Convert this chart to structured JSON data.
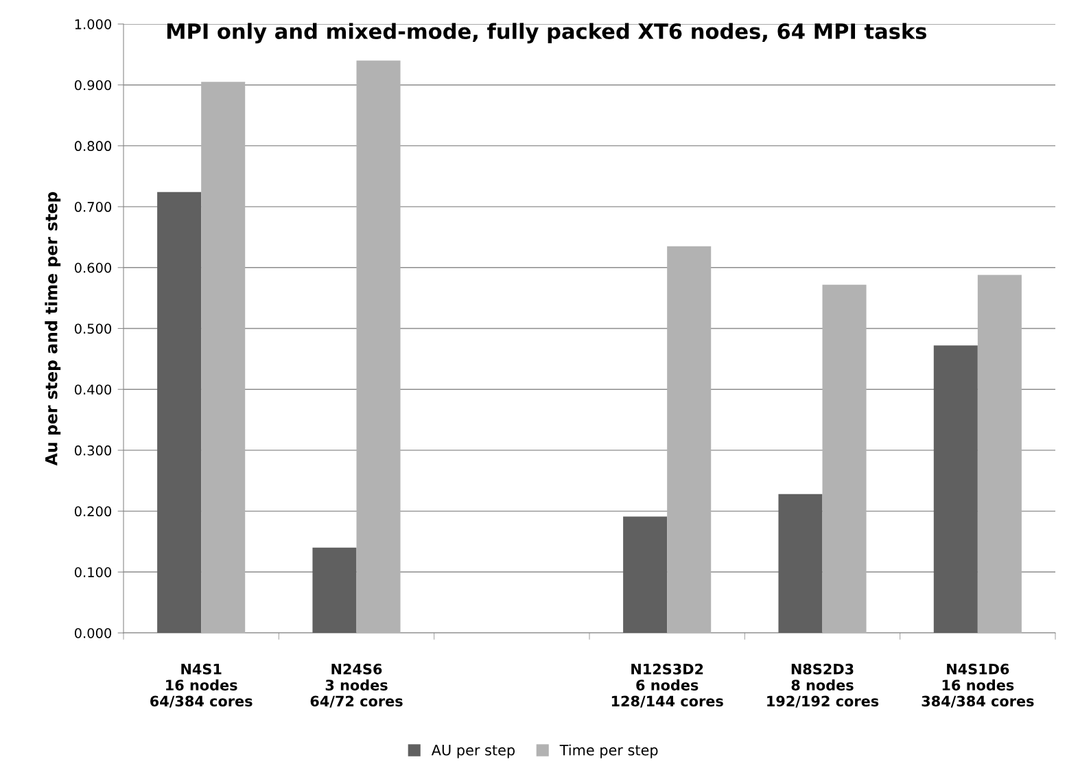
{
  "chart_data": {
    "type": "bar",
    "title": "MPI only and mixed-mode, fully packed XT6 nodes, 64 MPI tasks",
    "ylabel": "Au per step and time per step",
    "categories": [
      "N4S1\n16 nodes\n64/384 cores",
      "N24S6\n3 nodes\n64/72 cores",
      null,
      "N12S3D2\n6 nodes\n128/144 cores",
      "N8S2D3\n8 nodes\n192/192 cores",
      "N4S1D6\n16 nodes\n384/384 cores"
    ],
    "series": [
      {
        "name": "AU per step",
        "color": "#606060",
        "values": [
          0.724,
          0.14,
          null,
          0.191,
          0.228,
          0.472
        ]
      },
      {
        "name": "Time per step",
        "color": "#b2b2b2",
        "values": [
          0.905,
          0.94,
          null,
          0.635,
          0.572,
          0.588
        ]
      }
    ],
    "ylim": [
      0,
      1
    ],
    "yticks": [
      {
        "value": 0,
        "label": "0.000"
      },
      {
        "value": 0.1,
        "label": "0.100"
      },
      {
        "value": 0.2,
        "label": "0.200"
      },
      {
        "value": 0.3,
        "label": "0.300"
      },
      {
        "value": 0.4,
        "label": "0.400"
      },
      {
        "value": 0.5,
        "label": "0.500"
      },
      {
        "value": 0.6,
        "label": "0.600"
      },
      {
        "value": 0.7,
        "label": "0.700"
      },
      {
        "value": 0.8,
        "label": "0.800"
      },
      {
        "value": 0.9,
        "label": "0.900"
      },
      {
        "value": 1,
        "label": "1.000"
      }
    ],
    "grid": "y",
    "legend": "bottom"
  }
}
